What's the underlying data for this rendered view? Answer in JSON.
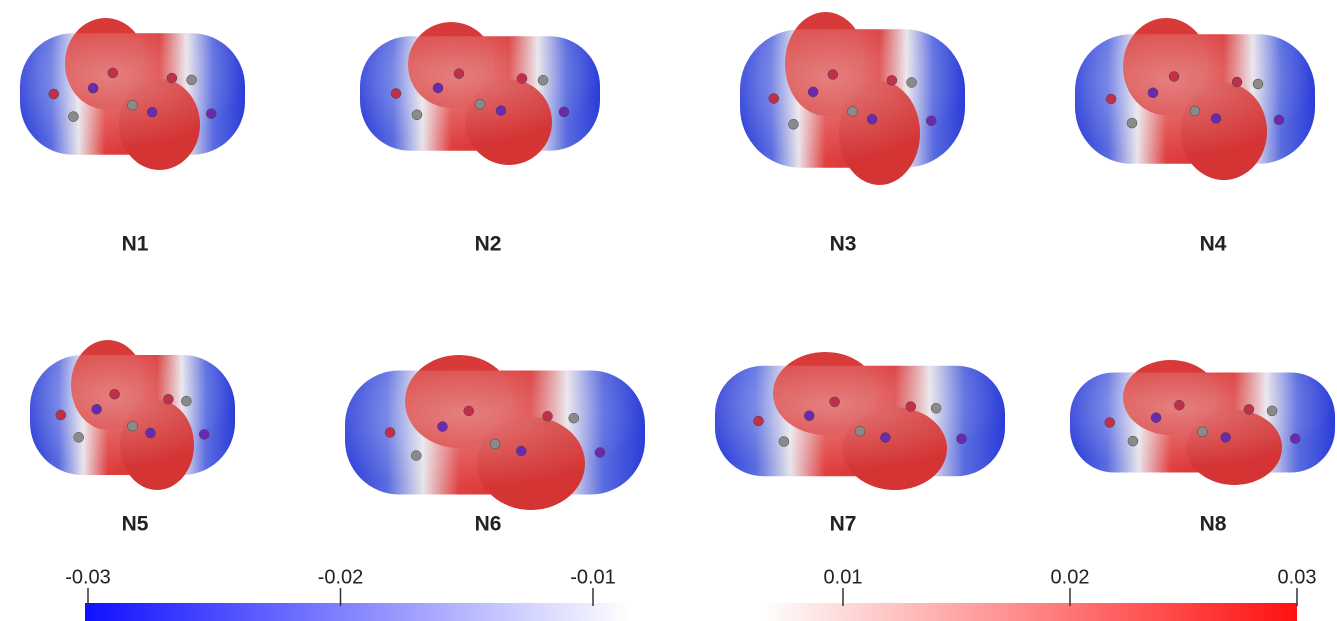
{
  "panels": [
    {
      "label": "N1"
    },
    {
      "label": "N2"
    },
    {
      "label": "N3"
    },
    {
      "label": "N4"
    },
    {
      "label": "N5"
    },
    {
      "label": "N6"
    },
    {
      "label": "N7"
    },
    {
      "label": "N8"
    }
  ],
  "colorbar": {
    "negative": {
      "ticks": [
        -0.03,
        -0.02,
        -0.01
      ],
      "colors": [
        "#1010ff",
        "#ffffff"
      ]
    },
    "positive": {
      "ticks": [
        0.01,
        0.02,
        0.03
      ],
      "colors": [
        "#ffffff",
        "#ff1010"
      ]
    }
  }
}
